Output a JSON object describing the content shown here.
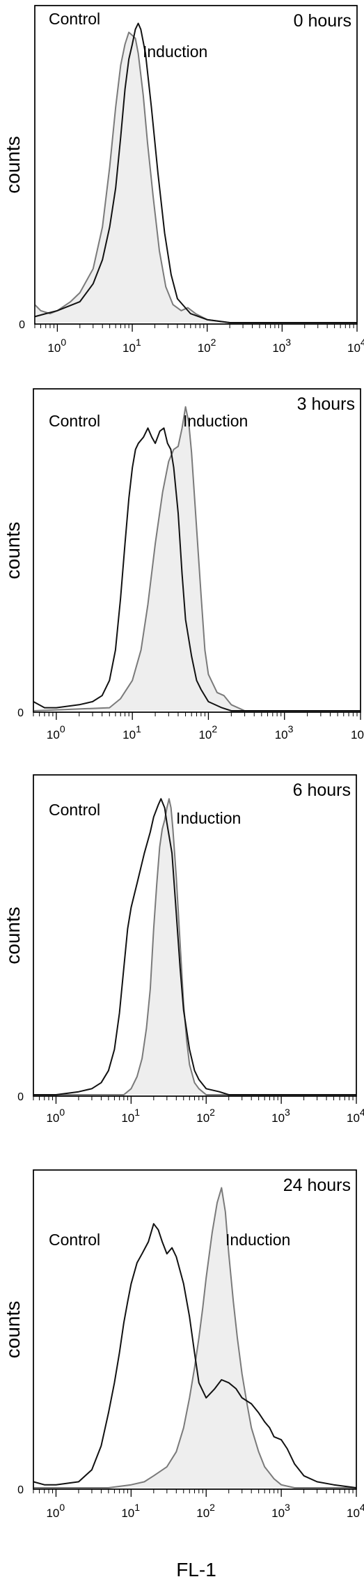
{
  "figure": {
    "xlabel": "FL-1",
    "ylabel": "counts",
    "y_tick_zero": "0",
    "x_tick_base": "10",
    "x_tick_exponents": [
      "0",
      "1",
      "2",
      "3",
      "4"
    ]
  },
  "colors": {
    "control": "#111111",
    "induction": "#7a7a7a",
    "induction_fill": "#eeeeee",
    "axis": "#000000"
  },
  "chart_data": [
    {
      "type": "line",
      "title": "0 hours",
      "xscale": "log",
      "xlim": [
        0.5,
        10000
      ],
      "ylim": [
        0,
        1.05
      ],
      "xlabel": "",
      "ylabel": "counts",
      "legend": [
        {
          "name": "Control",
          "placement": "top-left"
        },
        {
          "name": "Induction",
          "placement": "top-center"
        }
      ],
      "series": [
        {
          "name": "Control",
          "points": [
            [
              0.5,
              0.02
            ],
            [
              0.7,
              0.03
            ],
            [
              1.0,
              0.04
            ],
            [
              2.0,
              0.07
            ],
            [
              3.0,
              0.13
            ],
            [
              4.0,
              0.21
            ],
            [
              5.0,
              0.32
            ],
            [
              6.0,
              0.45
            ],
            [
              7.0,
              0.62
            ],
            [
              8.0,
              0.78
            ],
            [
              9.0,
              0.88
            ],
            [
              10.0,
              0.93
            ],
            [
              11.0,
              0.98
            ],
            [
              12.0,
              1.0
            ],
            [
              13.0,
              0.98
            ],
            [
              15.0,
              0.9
            ],
            [
              18.0,
              0.72
            ],
            [
              22.0,
              0.5
            ],
            [
              27.0,
              0.3
            ],
            [
              33.0,
              0.16
            ],
            [
              40.0,
              0.08
            ],
            [
              60.0,
              0.03
            ],
            [
              100.0,
              0.01
            ],
            [
              200.0,
              0.0
            ],
            [
              10000,
              0.0
            ]
          ]
        },
        {
          "name": "Induction",
          "filled": true,
          "points": [
            [
              0.5,
              0.06
            ],
            [
              0.6,
              0.04
            ],
            [
              0.8,
              0.03
            ],
            [
              1.0,
              0.04
            ],
            [
              1.5,
              0.07
            ],
            [
              2.0,
              0.1
            ],
            [
              3.0,
              0.18
            ],
            [
              4.0,
              0.32
            ],
            [
              5.0,
              0.52
            ],
            [
              6.0,
              0.72
            ],
            [
              7.0,
              0.86
            ],
            [
              8.0,
              0.93
            ],
            [
              9.0,
              0.97
            ],
            [
              10.0,
              0.96
            ],
            [
              11.0,
              0.95
            ],
            [
              12.0,
              0.9
            ],
            [
              14.0,
              0.76
            ],
            [
              16.0,
              0.6
            ],
            [
              19.0,
              0.42
            ],
            [
              23.0,
              0.24
            ],
            [
              28.0,
              0.12
            ],
            [
              35.0,
              0.06
            ],
            [
              45.0,
              0.04
            ],
            [
              55.0,
              0.05
            ],
            [
              70.0,
              0.03
            ],
            [
              100.0,
              0.01
            ],
            [
              200.0,
              0.0
            ],
            [
              10000,
              0.0
            ]
          ]
        }
      ]
    },
    {
      "type": "line",
      "title": "3 hours",
      "xscale": "log",
      "xlim": [
        0.5,
        10000
      ],
      "ylim": [
        0,
        1.05
      ],
      "xlabel": "",
      "ylabel": "counts",
      "legend": [
        {
          "name": "Control",
          "placement": "top-left"
        },
        {
          "name": "Induction",
          "placement": "top-center"
        }
      ],
      "series": [
        {
          "name": "Control",
          "points": [
            [
              0.5,
              0.03
            ],
            [
              0.7,
              0.01
            ],
            [
              1.0,
              0.01
            ],
            [
              2.0,
              0.02
            ],
            [
              3.0,
              0.03
            ],
            [
              4.0,
              0.05
            ],
            [
              5.0,
              0.1
            ],
            [
              6.0,
              0.2
            ],
            [
              7.0,
              0.37
            ],
            [
              8.0,
              0.55
            ],
            [
              9.0,
              0.7
            ],
            [
              10.0,
              0.8
            ],
            [
              11.0,
              0.86
            ],
            [
              12.0,
              0.88
            ],
            [
              14.0,
              0.9
            ],
            [
              16.0,
              0.93
            ],
            [
              18.0,
              0.9
            ],
            [
              20.0,
              0.88
            ],
            [
              23.0,
              0.92
            ],
            [
              26.0,
              0.93
            ],
            [
              29.0,
              0.88
            ],
            [
              32.0,
              0.86
            ],
            [
              35.0,
              0.8
            ],
            [
              40.0,
              0.65
            ],
            [
              45.0,
              0.45
            ],
            [
              50.0,
              0.3
            ],
            [
              60.0,
              0.18
            ],
            [
              70.0,
              0.1
            ],
            [
              80.0,
              0.07
            ],
            [
              100.0,
              0.03
            ],
            [
              150.0,
              0.01
            ],
            [
              200.0,
              0.0
            ],
            [
              10000,
              0.0
            ]
          ]
        },
        {
          "name": "Induction",
          "filled": true,
          "points": [
            [
              0.5,
              0.0
            ],
            [
              5.0,
              0.01
            ],
            [
              7.0,
              0.04
            ],
            [
              10.0,
              0.1
            ],
            [
              13.0,
              0.2
            ],
            [
              16.0,
              0.35
            ],
            [
              20.0,
              0.55
            ],
            [
              25.0,
              0.72
            ],
            [
              30.0,
              0.82
            ],
            [
              35.0,
              0.86
            ],
            [
              40.0,
              0.87
            ],
            [
              45.0,
              0.93
            ],
            [
              50.0,
              1.0
            ],
            [
              55.0,
              0.95
            ],
            [
              60.0,
              0.85
            ],
            [
              70.0,
              0.6
            ],
            [
              80.0,
              0.38
            ],
            [
              90.0,
              0.2
            ],
            [
              100.0,
              0.12
            ],
            [
              130.0,
              0.06
            ],
            [
              160.0,
              0.05
            ],
            [
              200.0,
              0.02
            ],
            [
              300.0,
              0.0
            ],
            [
              10000,
              0.0
            ]
          ]
        }
      ]
    },
    {
      "type": "line",
      "title": "6 hours",
      "xscale": "log",
      "xlim": [
        0.5,
        10000
      ],
      "ylim": [
        0,
        1.05
      ],
      "xlabel": "",
      "ylabel": "counts",
      "legend": [
        {
          "name": "Control",
          "placement": "top-left"
        },
        {
          "name": "Induction",
          "placement": "top-center"
        }
      ],
      "series": [
        {
          "name": "Control",
          "points": [
            [
              0.5,
              0.0
            ],
            [
              1.0,
              0.0
            ],
            [
              2.0,
              0.01
            ],
            [
              3.0,
              0.02
            ],
            [
              4.0,
              0.04
            ],
            [
              5.0,
              0.08
            ],
            [
              6.0,
              0.15
            ],
            [
              7.0,
              0.27
            ],
            [
              8.0,
              0.42
            ],
            [
              9.0,
              0.55
            ],
            [
              10.0,
              0.62
            ],
            [
              12.0,
              0.7
            ],
            [
              15.0,
              0.8
            ],
            [
              18.0,
              0.87
            ],
            [
              20.0,
              0.92
            ],
            [
              23.0,
              0.96
            ],
            [
              25.0,
              0.98
            ],
            [
              28.0,
              0.95
            ],
            [
              30.0,
              0.9
            ],
            [
              35.0,
              0.8
            ],
            [
              40.0,
              0.6
            ],
            [
              45.0,
              0.42
            ],
            [
              50.0,
              0.28
            ],
            [
              60.0,
              0.15
            ],
            [
              70.0,
              0.08
            ],
            [
              80.0,
              0.05
            ],
            [
              100.0,
              0.02
            ],
            [
              150.0,
              0.01
            ],
            [
              200.0,
              0.0
            ],
            [
              10000,
              0.0
            ]
          ]
        },
        {
          "name": "Induction",
          "filled": true,
          "points": [
            [
              0.5,
              0.0
            ],
            [
              8.0,
              0.0
            ],
            [
              10.0,
              0.02
            ],
            [
              12.0,
              0.06
            ],
            [
              14.0,
              0.12
            ],
            [
              16.0,
              0.22
            ],
            [
              18.0,
              0.35
            ],
            [
              20.0,
              0.55
            ],
            [
              22.0,
              0.7
            ],
            [
              24.0,
              0.82
            ],
            [
              26.0,
              0.88
            ],
            [
              28.0,
              0.91
            ],
            [
              30.0,
              0.95
            ],
            [
              32.0,
              0.98
            ],
            [
              34.0,
              0.95
            ],
            [
              36.0,
              0.88
            ],
            [
              40.0,
              0.72
            ],
            [
              45.0,
              0.5
            ],
            [
              50.0,
              0.3
            ],
            [
              55.0,
              0.18
            ],
            [
              60.0,
              0.1
            ],
            [
              70.0,
              0.04
            ],
            [
              80.0,
              0.02
            ],
            [
              100.0,
              0.0
            ],
            [
              10000,
              0.0
            ]
          ]
        }
      ]
    },
    {
      "type": "line",
      "title": "24 hours",
      "xscale": "log",
      "xlim": [
        0.5,
        10000
      ],
      "ylim": [
        0,
        1.05
      ],
      "xlabel": "",
      "ylabel": "counts",
      "legend": [
        {
          "name": "Control",
          "placement": "top-left"
        },
        {
          "name": "Induction",
          "placement": "top-center"
        }
      ],
      "series": [
        {
          "name": "Control",
          "points": [
            [
              0.5,
              0.02
            ],
            [
              0.7,
              0.01
            ],
            [
              1.0,
              0.01
            ],
            [
              2.0,
              0.02
            ],
            [
              3.0,
              0.06
            ],
            [
              4.0,
              0.14
            ],
            [
              5.0,
              0.25
            ],
            [
              6.0,
              0.35
            ],
            [
              7.0,
              0.45
            ],
            [
              8.0,
              0.55
            ],
            [
              9.0,
              0.62
            ],
            [
              10.0,
              0.68
            ],
            [
              12.0,
              0.75
            ],
            [
              14.0,
              0.78
            ],
            [
              17.0,
              0.82
            ],
            [
              20.0,
              0.88
            ],
            [
              23.0,
              0.86
            ],
            [
              26.0,
              0.82
            ],
            [
              30.0,
              0.78
            ],
            [
              35.0,
              0.8
            ],
            [
              40.0,
              0.77
            ],
            [
              50.0,
              0.68
            ],
            [
              60.0,
              0.57
            ],
            [
              70.0,
              0.45
            ],
            [
              80.0,
              0.35
            ],
            [
              100.0,
              0.3
            ],
            [
              130.0,
              0.33
            ],
            [
              160.0,
              0.36
            ],
            [
              200.0,
              0.35
            ],
            [
              250.0,
              0.33
            ],
            [
              300.0,
              0.3
            ],
            [
              400.0,
              0.28
            ],
            [
              500.0,
              0.25
            ],
            [
              600.0,
              0.22
            ],
            [
              700.0,
              0.2
            ],
            [
              800.0,
              0.17
            ],
            [
              1000.0,
              0.16
            ],
            [
              1200.0,
              0.13
            ],
            [
              1500.0,
              0.08
            ],
            [
              2000.0,
              0.04
            ],
            [
              3000.0,
              0.02
            ],
            [
              5000.0,
              0.01
            ],
            [
              10000,
              0.0
            ]
          ]
        },
        {
          "name": "Induction",
          "filled": true,
          "points": [
            [
              0.5,
              0.0
            ],
            [
              5.0,
              0.0
            ],
            [
              10.0,
              0.01
            ],
            [
              15.0,
              0.02
            ],
            [
              20.0,
              0.04
            ],
            [
              30.0,
              0.07
            ],
            [
              40.0,
              0.12
            ],
            [
              50.0,
              0.2
            ],
            [
              60.0,
              0.3
            ],
            [
              70.0,
              0.4
            ],
            [
              80.0,
              0.5
            ],
            [
              90.0,
              0.6
            ],
            [
              100.0,
              0.7
            ],
            [
              120.0,
              0.85
            ],
            [
              140.0,
              0.95
            ],
            [
              160.0,
              1.0
            ],
            [
              180.0,
              0.92
            ],
            [
              200.0,
              0.78
            ],
            [
              230.0,
              0.62
            ],
            [
              260.0,
              0.5
            ],
            [
              300.0,
              0.38
            ],
            [
              350.0,
              0.28
            ],
            [
              400.0,
              0.2
            ],
            [
              500.0,
              0.12
            ],
            [
              600.0,
              0.07
            ],
            [
              800.0,
              0.03
            ],
            [
              1000.0,
              0.01
            ],
            [
              1500.0,
              0.0
            ],
            [
              10000,
              0.0
            ]
          ]
        }
      ]
    }
  ]
}
